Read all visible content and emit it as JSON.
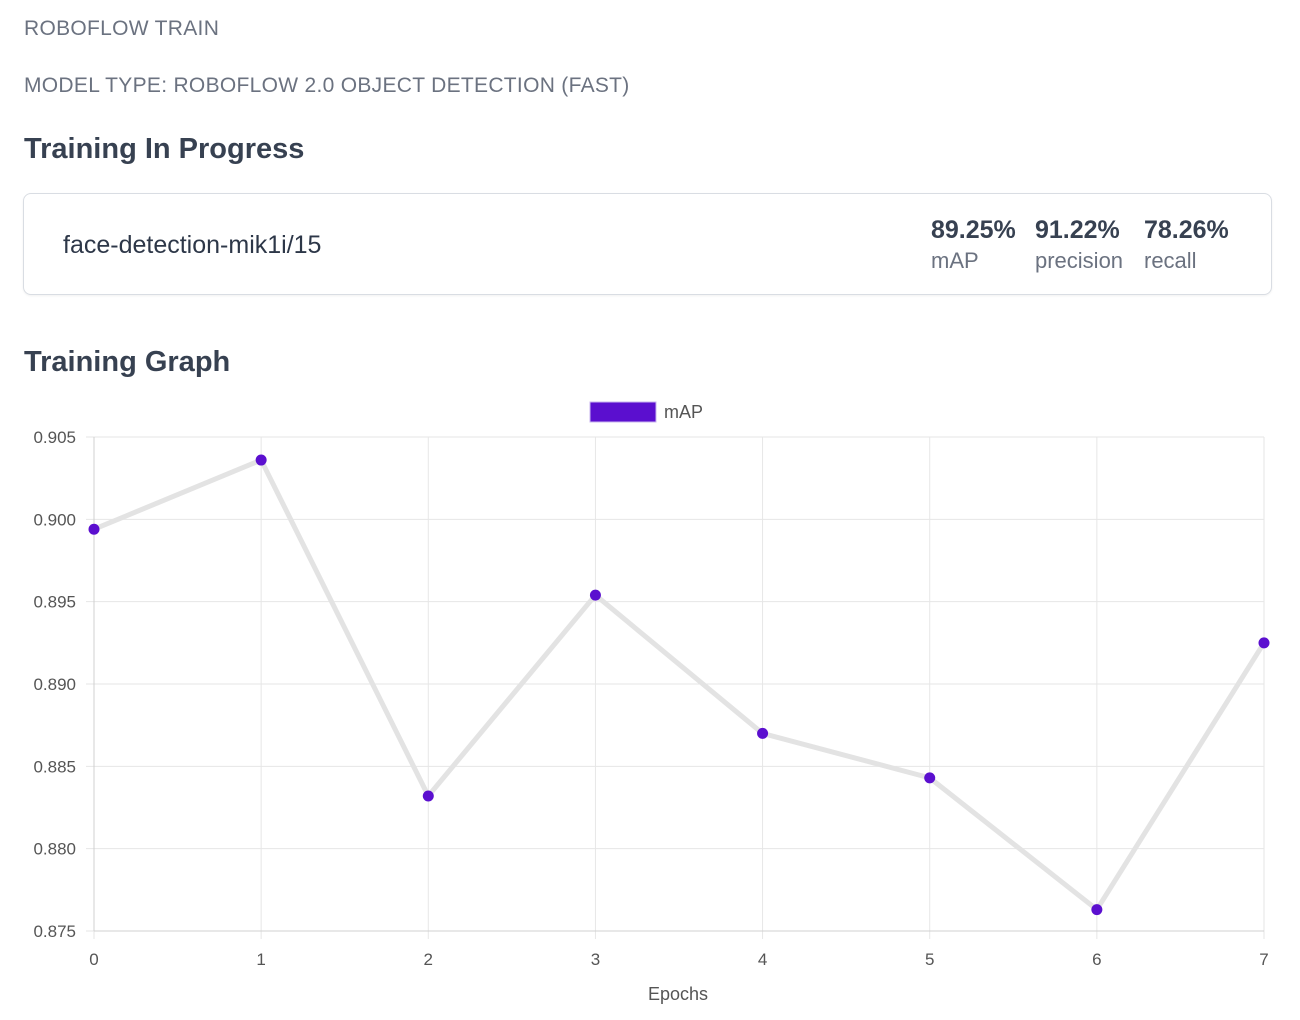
{
  "header": {
    "brand": "ROBOFLOW TRAIN",
    "model_type": "MODEL TYPE: ROBOFLOW 2.0 OBJECT DETECTION (FAST)"
  },
  "progress": {
    "title": "Training In Progress",
    "version_name": "face-detection-mik1i/15",
    "metrics": [
      {
        "value": "89.25%",
        "label": "mAP"
      },
      {
        "value": "91.22%",
        "label": "precision"
      },
      {
        "value": "78.26%",
        "label": "recall"
      }
    ]
  },
  "graph": {
    "title": "Training Graph"
  },
  "colors": {
    "series": "#5b0fcf",
    "line": "#e3e3e3",
    "grid": "#e6e6e6",
    "axis_text": "#555555"
  },
  "chart_data": {
    "type": "line",
    "title": "",
    "xlabel": "Epochs",
    "ylabel": "",
    "x": [
      0,
      1,
      2,
      3,
      4,
      5,
      6,
      7
    ],
    "series": [
      {
        "name": "mAP",
        "values": [
          0.8994,
          0.9036,
          0.8832,
          0.8954,
          0.887,
          0.8843,
          0.8763,
          0.8925
        ]
      }
    ],
    "ylim": [
      0.875,
      0.905
    ],
    "yticks": [
      "0.905",
      "0.900",
      "0.895",
      "0.890",
      "0.885",
      "0.880",
      "0.875"
    ],
    "xticks": [
      "0",
      "1",
      "2",
      "3",
      "4",
      "5",
      "6",
      "7"
    ],
    "legend": "top-center",
    "grid": true
  }
}
